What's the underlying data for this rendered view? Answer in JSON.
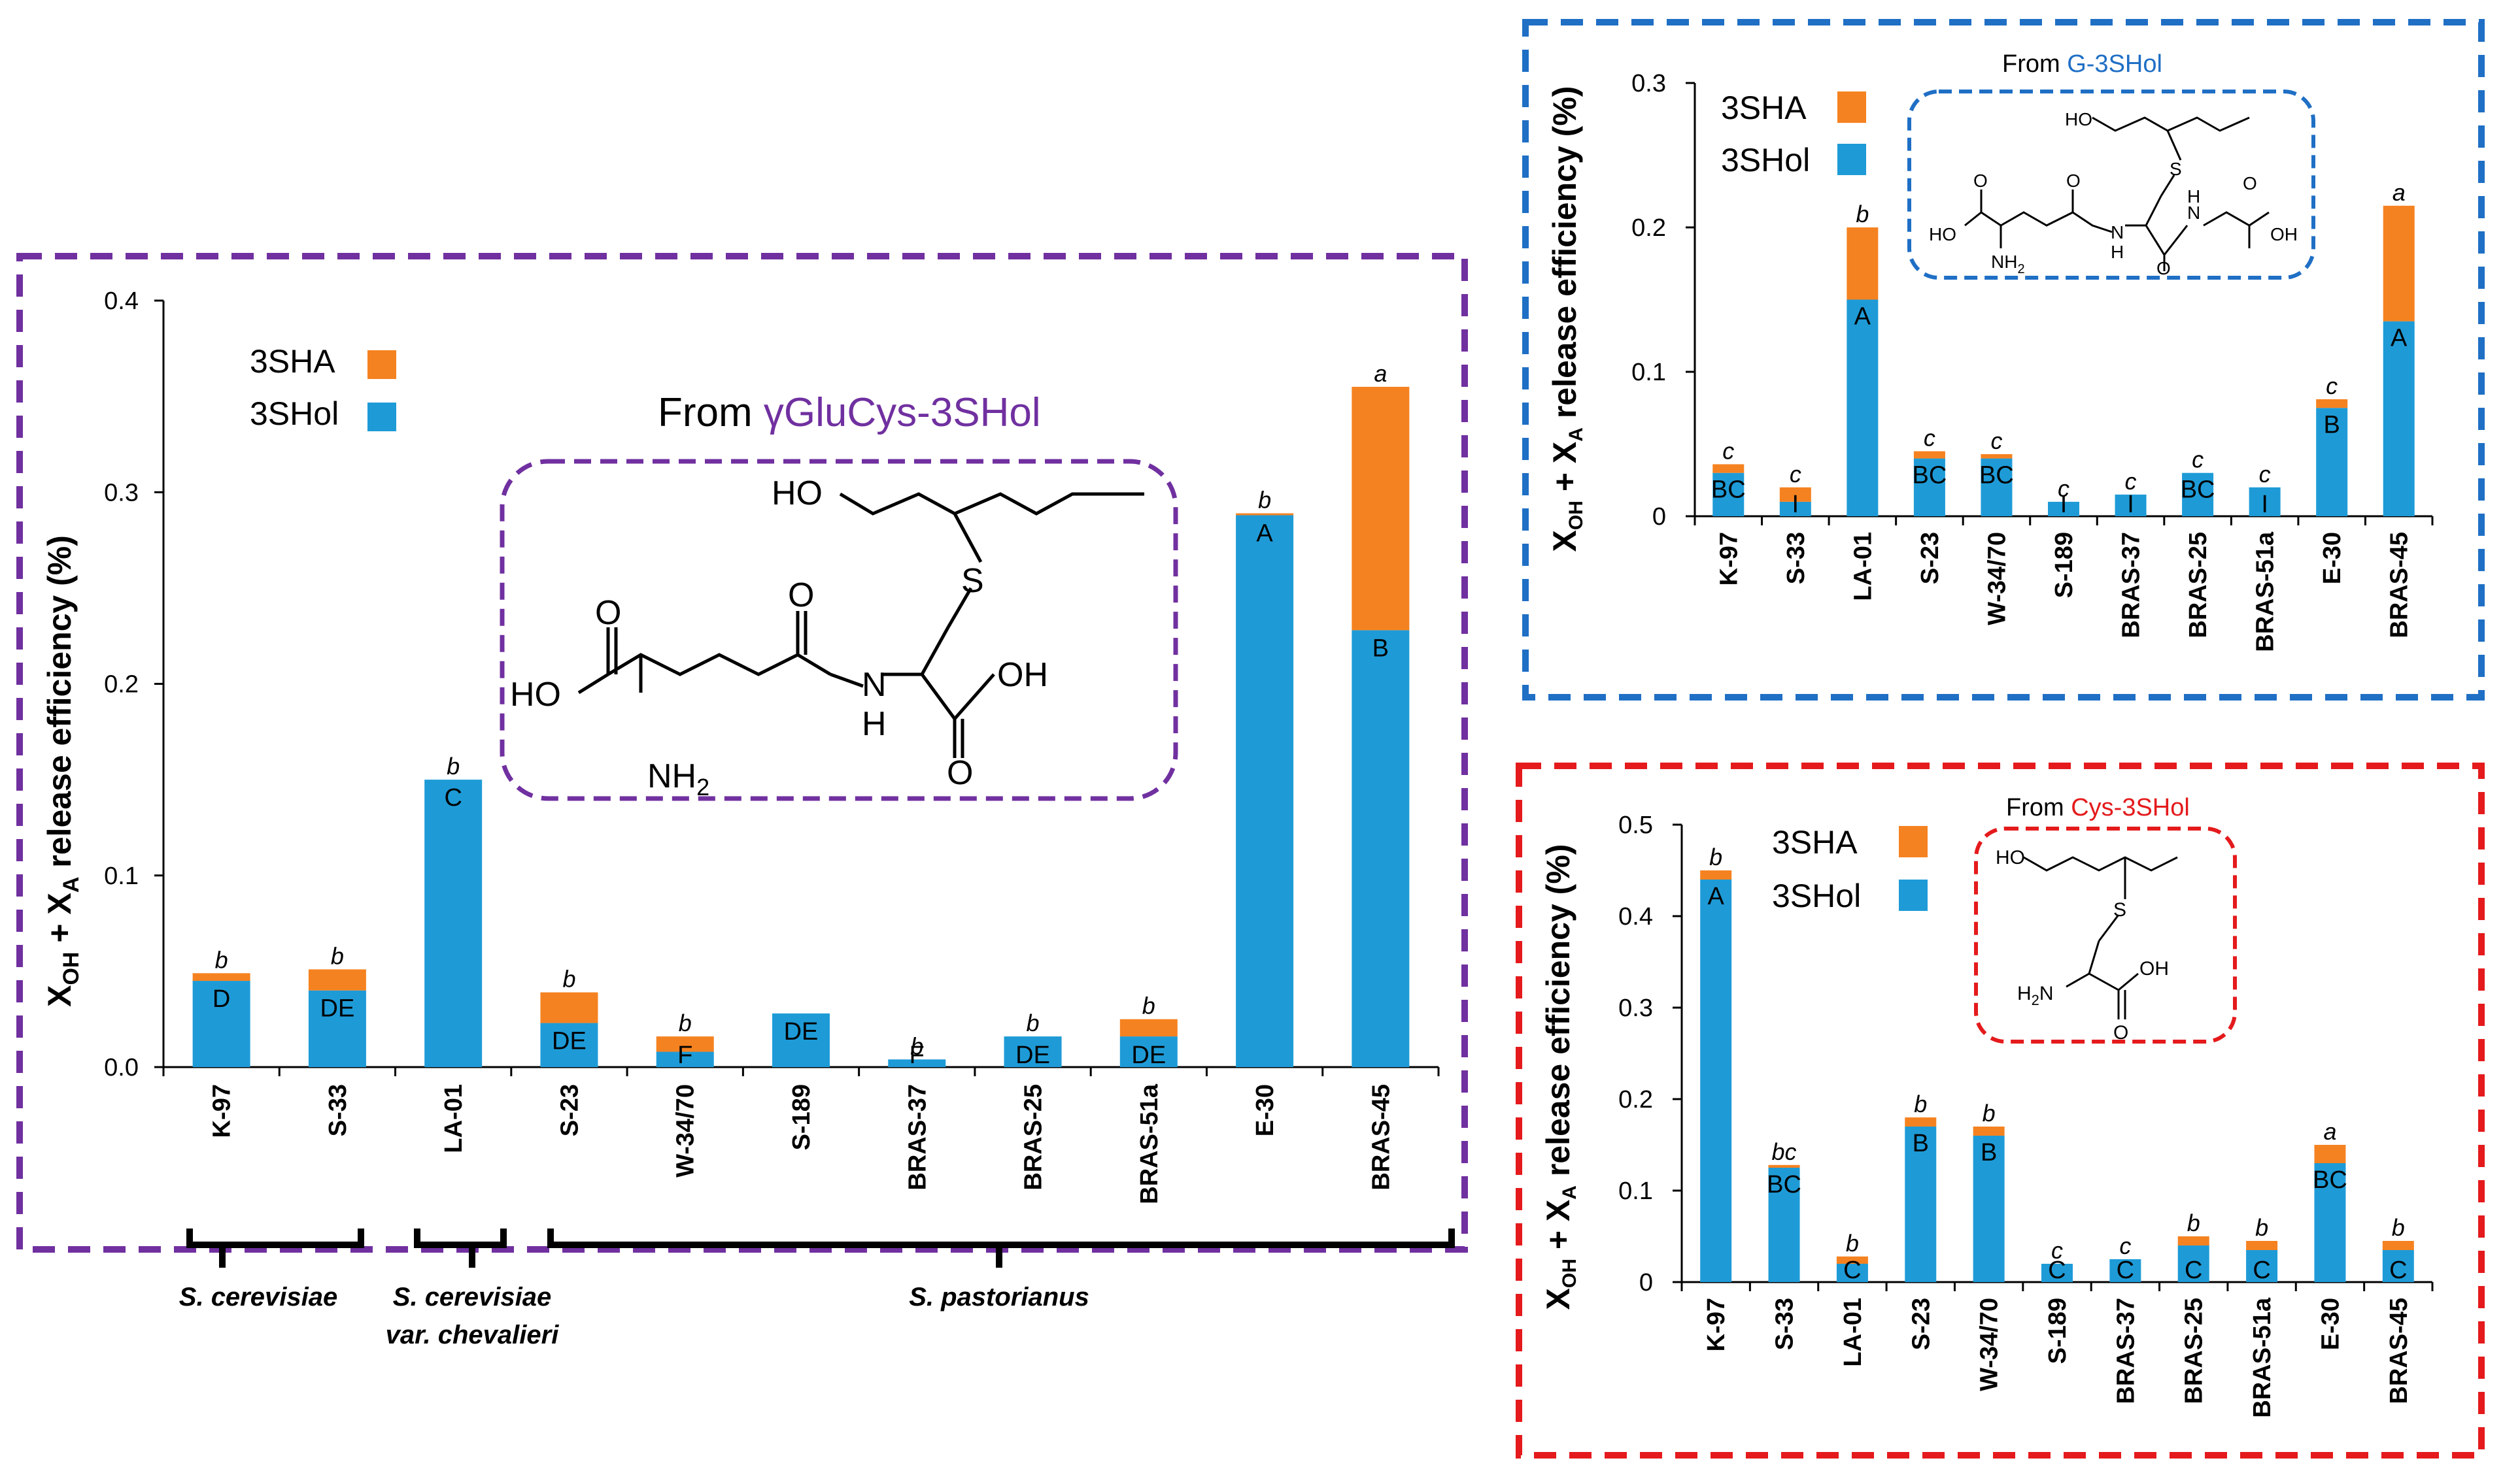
{
  "colors": {
    "s3hol": "#1e9bd7",
    "s3ha": "#f58220",
    "purple": "#7030a0",
    "blue": "#1f6fc5",
    "red": "#e41a1c"
  },
  "ylabel_main": "X",
  "ylabel_oh": "OH",
  "ylabel_plus": " + X",
  "ylabel_a": "A",
  "ylabel_rest": " release efficiency  (%)",
  "ylabel_rest_small": " release efficiency (%)",
  "legend": {
    "s3ha": "3SHA",
    "s3hol": "3SHol"
  },
  "species": {
    "cerevisiae": "S. cerevisiae",
    "chevalieri_1": "S. cerevisiae",
    "chevalieri_2": "var. chevalieri",
    "pastorianus": "S. pastorianus"
  },
  "chem": {
    "ho": "HO",
    "oh": "OH",
    "s": "S",
    "o": "O",
    "n": "N",
    "h": "H",
    "nh2": "NH",
    "sub2": "2",
    "h2n": "H",
    "h2n_rest": "N"
  },
  "chart_data": [
    {
      "id": "gglucys",
      "type": "bar",
      "stacked": true,
      "title_prefix": "From ",
      "title_highlight": "γGluCys-3SHol",
      "categories": [
        "K-97",
        "S-33",
        "LA-01",
        "S-23",
        "W-34/70",
        "S-189",
        "BRAS-37",
        "BRAS-25",
        "BRAS-51a",
        "E-30",
        "BRAS-45"
      ],
      "series": [
        {
          "name": "3SHol",
          "values": [
            0.045,
            0.04,
            0.15,
            0.023,
            0.008,
            0.028,
            0.004,
            0.016,
            0.016,
            0.288,
            0.228
          ]
        },
        {
          "name": "3SHA",
          "values": [
            0.004,
            0.011,
            0.0,
            0.016,
            0.008,
            0.0,
            0.0,
            0.0,
            0.009,
            0.001,
            0.127
          ]
        }
      ],
      "ylim": [
        0,
        0.4
      ],
      "yticks": [
        "0.0",
        "0.1",
        "0.2",
        "0.3",
        "0.4"
      ],
      "upper_letters": [
        "b",
        "b",
        "b",
        "b",
        "b",
        "",
        "b",
        "b",
        "b",
        "b",
        "a"
      ],
      "lower_letters": [
        "D",
        "DE",
        "C",
        "DE",
        "F",
        "DE",
        "F",
        "DE",
        "DE",
        "A",
        "B"
      ],
      "legend_position": "top-left"
    },
    {
      "id": "g3shol",
      "type": "bar",
      "stacked": true,
      "title_prefix": "From ",
      "title_highlight": "G-3SHol",
      "categories": [
        "K-97",
        "S-33",
        "LA-01",
        "S-23",
        "W-34/70",
        "S-189",
        "BRAS-37",
        "BRAS-25",
        "BRAS-51a",
        "E-30",
        "BRAS-45"
      ],
      "series": [
        {
          "name": "3SHol",
          "values": [
            0.03,
            0.01,
            0.15,
            0.04,
            0.04,
            0.01,
            0.015,
            0.03,
            0.02,
            0.075,
            0.135
          ]
        },
        {
          "name": "3SHA",
          "values": [
            0.006,
            0.01,
            0.05,
            0.005,
            0.003,
            0.0,
            0.0,
            0.0,
            0.0,
            0.006,
            0.08
          ]
        }
      ],
      "ylim": [
        0,
        0.3
      ],
      "yticks": [
        "0",
        "0.1",
        "0.2",
        "0.3"
      ],
      "upper_letters": [
        "c",
        "c",
        "b",
        "c",
        "c",
        "c",
        "c",
        "c",
        "c",
        "c",
        "a"
      ],
      "lower_letters": [
        "BC",
        "I",
        "A",
        "BC",
        "BC",
        "I",
        "I",
        "BC",
        "I",
        "B",
        "A"
      ],
      "legend_position": "top-left"
    },
    {
      "id": "cys3shol",
      "type": "bar",
      "stacked": true,
      "title_prefix": "From ",
      "title_highlight": "Cys-3SHol",
      "categories": [
        "K-97",
        "S-33",
        "LA-01",
        "S-23",
        "W-34/70",
        "S-189",
        "BRAS-37",
        "BRAS-25",
        "BRAS-51a",
        "E-30",
        "BRAS-45"
      ],
      "series": [
        {
          "name": "3SHol",
          "values": [
            0.44,
            0.125,
            0.02,
            0.17,
            0.16,
            0.02,
            0.025,
            0.04,
            0.035,
            0.13,
            0.035
          ]
        },
        {
          "name": "3SHA",
          "values": [
            0.01,
            0.003,
            0.008,
            0.01,
            0.01,
            0.0,
            0.0,
            0.01,
            0.01,
            0.02,
            0.01
          ]
        }
      ],
      "ylim": [
        0,
        0.5
      ],
      "yticks": [
        "0",
        "0.1",
        "0.2",
        "0.3",
        "0.4",
        "0.5"
      ],
      "upper_letters": [
        "b",
        "bc",
        "b",
        "b",
        "b",
        "c",
        "c",
        "b",
        "b",
        "a",
        "b"
      ],
      "lower_letters": [
        "A",
        "BC",
        "C",
        "B",
        "B",
        "C",
        "C",
        "C",
        "C",
        "BC",
        "C"
      ],
      "legend_position": "top-left"
    }
  ]
}
